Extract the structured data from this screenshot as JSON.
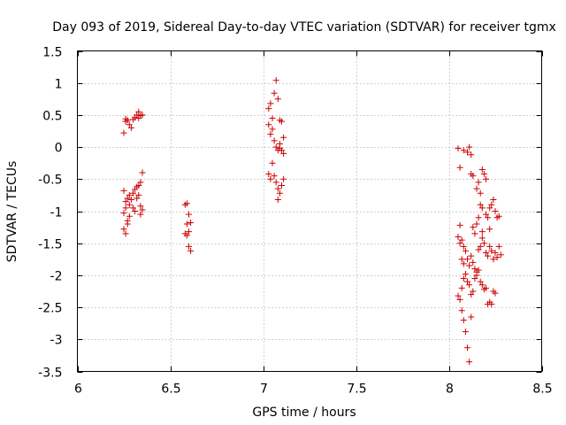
{
  "chart_data": {
    "type": "scatter",
    "title": "Day 093 of 2019, Sidereal Day-to-day VTEC variation (SDTVAR) for receiver tgmx",
    "xlabel": "GPS time / hours",
    "ylabel": "SDTVAR / TECUs",
    "xlim": [
      6,
      8.5
    ],
    "ylim": [
      -3.5,
      1.5
    ],
    "xticks": [
      6,
      6.5,
      7,
      7.5,
      8,
      8.5
    ],
    "xtick_labels": [
      "6",
      "6.5",
      "7",
      "7.5",
      "8",
      "8.5"
    ],
    "yticks": [
      -3.5,
      -3,
      -2.5,
      -2,
      -1.5,
      -1,
      -0.5,
      0,
      0.5,
      1,
      1.5
    ],
    "ytick_labels": [
      "-3.5",
      "-3",
      "-2.5",
      "-2",
      "-1.5",
      "-1",
      "-0.5",
      "0",
      "0.5",
      "1",
      "1.5"
    ],
    "grid": true,
    "marker": "+",
    "marker_color": "#cc0000",
    "series": [
      {
        "name": "SDTVAR",
        "points": [
          [
            6.25,
            0.22
          ],
          [
            6.26,
            0.4
          ],
          [
            6.26,
            0.44
          ],
          [
            6.27,
            0.42
          ],
          [
            6.28,
            0.35
          ],
          [
            6.29,
            0.3
          ],
          [
            6.3,
            0.43
          ],
          [
            6.31,
            0.46
          ],
          [
            6.32,
            0.5
          ],
          [
            6.33,
            0.55
          ],
          [
            6.34,
            0.49
          ],
          [
            6.35,
            0.5
          ],
          [
            6.33,
            0.45
          ],
          [
            6.25,
            -0.68
          ],
          [
            6.26,
            -0.85
          ],
          [
            6.26,
            -0.95
          ],
          [
            6.27,
            -0.8
          ],
          [
            6.28,
            -0.75
          ],
          [
            6.28,
            -0.9
          ],
          [
            6.29,
            -0.82
          ],
          [
            6.3,
            -0.72
          ],
          [
            6.3,
            -0.95
          ],
          [
            6.31,
            -0.66
          ],
          [
            6.32,
            -0.62
          ],
          [
            6.32,
            -0.8
          ],
          [
            6.33,
            -0.6
          ],
          [
            6.33,
            -0.75
          ],
          [
            6.34,
            -0.55
          ],
          [
            6.34,
            -0.92
          ],
          [
            6.35,
            -0.4
          ],
          [
            6.34,
            -1.05
          ],
          [
            6.35,
            -0.98
          ],
          [
            6.31,
            -1.0
          ],
          [
            6.25,
            -1.28
          ],
          [
            6.26,
            -1.35
          ],
          [
            6.27,
            -1.2
          ],
          [
            6.28,
            -1.08
          ],
          [
            6.25,
            -1.03
          ],
          [
            6.27,
            -1.15
          ],
          [
            6.58,
            -0.9
          ],
          [
            6.59,
            -0.88
          ],
          [
            6.6,
            -1.05
          ],
          [
            6.61,
            -1.18
          ],
          [
            6.58,
            -1.35
          ],
          [
            6.59,
            -1.38
          ],
          [
            6.6,
            -1.32
          ],
          [
            6.6,
            -1.55
          ],
          [
            6.61,
            -1.62
          ],
          [
            6.59,
            -1.2
          ],
          [
            7.03,
            0.35
          ],
          [
            7.04,
            0.68
          ],
          [
            7.05,
            0.45
          ],
          [
            7.05,
            0.28
          ],
          [
            7.06,
            0.84
          ],
          [
            7.07,
            1.04
          ],
          [
            7.08,
            0.75
          ],
          [
            7.09,
            0.42
          ],
          [
            7.1,
            0.4
          ],
          [
            7.03,
            0.6
          ],
          [
            7.04,
            0.2
          ],
          [
            7.06,
            0.1
          ],
          [
            7.07,
            0.0
          ],
          [
            7.08,
            -0.05
          ],
          [
            7.09,
            -0.02
          ],
          [
            7.11,
            0.15
          ],
          [
            7.11,
            -0.1
          ],
          [
            7.05,
            -0.25
          ],
          [
            7.06,
            -0.45
          ],
          [
            7.03,
            -0.42
          ],
          [
            7.04,
            -0.5
          ],
          [
            7.07,
            -0.55
          ],
          [
            7.08,
            -0.65
          ],
          [
            7.09,
            -0.72
          ],
          [
            7.1,
            -0.6
          ],
          [
            7.11,
            -0.5
          ],
          [
            7.08,
            -0.82
          ],
          [
            7.1,
            -0.05
          ],
          [
            7.09,
            0.05
          ],
          [
            8.05,
            -0.02
          ],
          [
            8.08,
            -0.05
          ],
          [
            8.1,
            -0.08
          ],
          [
            8.11,
            0.0
          ],
          [
            8.12,
            -0.12
          ],
          [
            8.06,
            -0.32
          ],
          [
            8.12,
            -0.42
          ],
          [
            8.13,
            -0.45
          ],
          [
            8.15,
            -0.65
          ],
          [
            8.16,
            -0.55
          ],
          [
            8.17,
            -0.72
          ],
          [
            8.18,
            -0.35
          ],
          [
            8.19,
            -0.42
          ],
          [
            8.2,
            -0.5
          ],
          [
            8.17,
            -0.9
          ],
          [
            8.18,
            -0.95
          ],
          [
            8.2,
            -1.05
          ],
          [
            8.21,
            -1.1
          ],
          [
            8.22,
            -0.95
          ],
          [
            8.23,
            -0.9
          ],
          [
            8.24,
            -0.82
          ],
          [
            8.25,
            -1.0
          ],
          [
            8.26,
            -1.1
          ],
          [
            8.27,
            -1.08
          ],
          [
            8.05,
            -1.4
          ],
          [
            8.06,
            -1.5
          ],
          [
            8.07,
            -1.45
          ],
          [
            8.08,
            -1.55
          ],
          [
            8.09,
            -1.62
          ],
          [
            8.1,
            -1.75
          ],
          [
            8.11,
            -1.85
          ],
          [
            8.12,
            -1.7
          ],
          [
            8.13,
            -1.8
          ],
          [
            8.14,
            -1.9
          ],
          [
            8.15,
            -1.95
          ],
          [
            8.16,
            -1.6
          ],
          [
            8.17,
            -1.55
          ],
          [
            8.18,
            -1.42
          ],
          [
            8.19,
            -1.5
          ],
          [
            8.2,
            -1.65
          ],
          [
            8.21,
            -1.7
          ],
          [
            8.22,
            -1.55
          ],
          [
            8.23,
            -1.62
          ],
          [
            8.24,
            -1.75
          ],
          [
            8.25,
            -1.65
          ],
          [
            8.26,
            -1.72
          ],
          [
            8.27,
            -1.55
          ],
          [
            8.28,
            -1.68
          ],
          [
            8.05,
            -2.32
          ],
          [
            8.06,
            -2.38
          ],
          [
            8.07,
            -2.2
          ],
          [
            8.08,
            -2.05
          ],
          [
            8.09,
            -1.98
          ],
          [
            8.1,
            -2.1
          ],
          [
            8.11,
            -2.15
          ],
          [
            8.12,
            -2.3
          ],
          [
            8.13,
            -2.25
          ],
          [
            8.14,
            -2.05
          ],
          [
            8.15,
            -2.0
          ],
          [
            8.16,
            -1.92
          ],
          [
            8.17,
            -2.1
          ],
          [
            8.18,
            -2.15
          ],
          [
            8.19,
            -2.22
          ],
          [
            8.2,
            -2.2
          ],
          [
            8.21,
            -2.45
          ],
          [
            8.22,
            -2.42
          ],
          [
            8.23,
            -2.45
          ],
          [
            8.24,
            -2.25
          ],
          [
            8.25,
            -2.28
          ],
          [
            8.08,
            -2.7
          ],
          [
            8.09,
            -2.88
          ],
          [
            8.1,
            -3.13
          ],
          [
            8.11,
            -3.35
          ],
          [
            8.12,
            -2.65
          ],
          [
            8.07,
            -2.55
          ],
          [
            8.13,
            -1.25
          ],
          [
            8.14,
            -1.35
          ],
          [
            8.15,
            -1.2
          ],
          [
            8.16,
            -1.1
          ],
          [
            8.18,
            -1.32
          ],
          [
            8.22,
            -1.28
          ],
          [
            8.06,
            -1.22
          ],
          [
            8.07,
            -1.75
          ],
          [
            8.08,
            -1.82
          ]
        ]
      }
    ]
  }
}
